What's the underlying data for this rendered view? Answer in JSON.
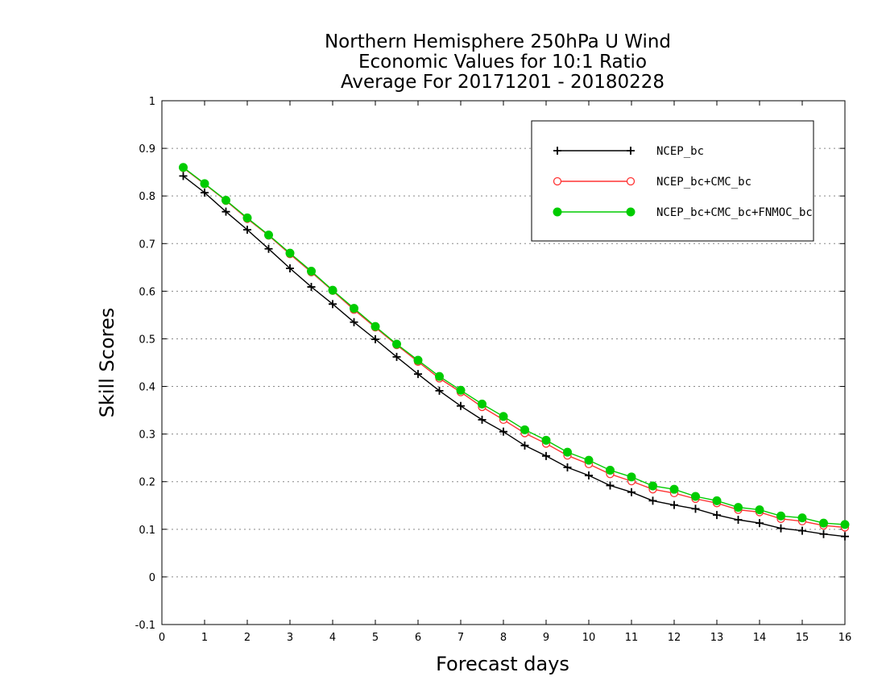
{
  "chart_data": {
    "type": "line",
    "title_lines": [
      "Northern Hemisphere 250hPa U Wind",
      "Economic Values for 10:1 Ratio",
      "Average For 20171201 - 20180228"
    ],
    "xlabel": "Forecast days",
    "ylabel": "Skill Scores",
    "xlim": [
      0,
      16
    ],
    "ylim": [
      -0.1,
      1
    ],
    "xticks": [
      "0",
      "1",
      "2",
      "3",
      "4",
      "5",
      "6",
      "7",
      "8",
      "9",
      "10",
      "11",
      "12",
      "13",
      "14",
      "15",
      "16"
    ],
    "yticks": [
      "-0.1",
      "0",
      "0.1",
      "0.2",
      "0.3",
      "0.4",
      "0.5",
      "0.6",
      "0.7",
      "0.8",
      "0.9",
      "1"
    ],
    "grid": "dotted horizontal",
    "legend_position": "top-right",
    "x": [
      0.5,
      1,
      1.5,
      2,
      2.5,
      3,
      3.5,
      4,
      4.5,
      5,
      5.5,
      6,
      6.5,
      7,
      7.5,
      8,
      8.5,
      9,
      9.5,
      10,
      10.5,
      11,
      11.5,
      12,
      12.5,
      13,
      13.5,
      14,
      14.5,
      15,
      15.5,
      16
    ],
    "series": [
      {
        "name": "NCEP_bc",
        "color": "#000000",
        "marker": "plus",
        "values": [
          0.842,
          0.807,
          0.767,
          0.729,
          0.689,
          0.648,
          0.609,
          0.573,
          0.535,
          0.499,
          0.462,
          0.426,
          0.391,
          0.359,
          0.33,
          0.305,
          0.276,
          0.254,
          0.23,
          0.213,
          0.192,
          0.178,
          0.16,
          0.151,
          0.143,
          0.13,
          0.12,
          0.113,
          0.102,
          0.097,
          0.09,
          0.085
        ]
      },
      {
        "name": "NCEP_bc+CMC_bc",
        "color": "#ff3333",
        "marker": "open-circle",
        "values": [
          0.859,
          0.825,
          0.79,
          0.752,
          0.717,
          0.678,
          0.64,
          0.601,
          0.561,
          0.524,
          0.487,
          0.452,
          0.417,
          0.388,
          0.357,
          0.33,
          0.302,
          0.28,
          0.255,
          0.237,
          0.216,
          0.201,
          0.184,
          0.176,
          0.164,
          0.155,
          0.141,
          0.136,
          0.122,
          0.117,
          0.108,
          0.104
        ]
      },
      {
        "name": "NCEP_bc+CMC_bc+FNMOC_bc",
        "color": "#00cc00",
        "marker": "filled-circle",
        "values": [
          0.86,
          0.826,
          0.791,
          0.754,
          0.718,
          0.68,
          0.642,
          0.602,
          0.564,
          0.526,
          0.489,
          0.455,
          0.421,
          0.392,
          0.363,
          0.337,
          0.309,
          0.287,
          0.262,
          0.245,
          0.224,
          0.21,
          0.191,
          0.184,
          0.169,
          0.16,
          0.146,
          0.141,
          0.128,
          0.124,
          0.113,
          0.11
        ]
      }
    ]
  }
}
